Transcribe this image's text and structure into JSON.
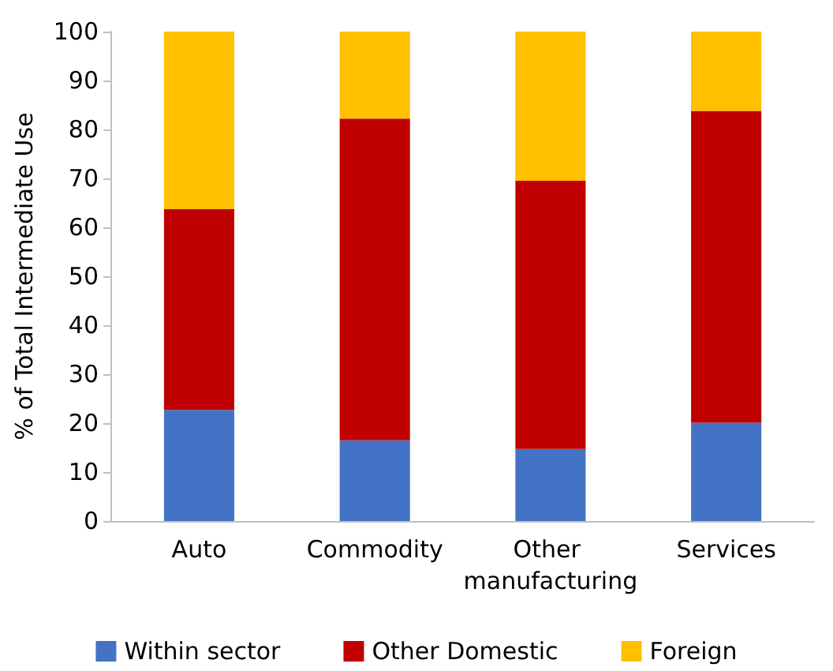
{
  "chart_data": {
    "type": "bar",
    "stacked": true,
    "ylabel": "% of Total Intermediate Use",
    "categories": [
      "Auto",
      "Commodity",
      "Other manufacturing",
      "Services"
    ],
    "series": [
      {
        "name": "Within sector",
        "color": "#4472c4",
        "values": [
          22.7,
          16.5,
          14.7,
          20.1
        ]
      },
      {
        "name": "Other Domestic",
        "color": "#c00000",
        "values": [
          41,
          65.7,
          54.8,
          63.7
        ]
      },
      {
        "name": "Foreign",
        "color": "#ffc000",
        "values": [
          36.3,
          17.8,
          30.5,
          16.2
        ]
      }
    ],
    "ylim": [
      0,
      100
    ],
    "yticks": [
      0,
      10,
      20,
      30,
      40,
      50,
      60,
      70,
      80,
      90,
      100
    ],
    "grid": false,
    "legend": "bottom"
  }
}
